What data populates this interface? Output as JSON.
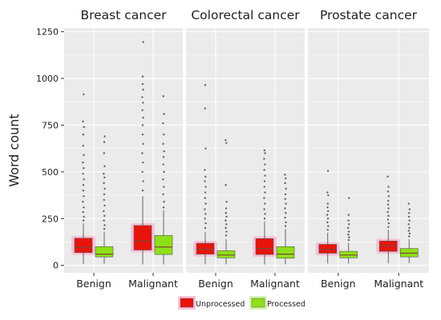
{
  "chart_data": {
    "type": "box",
    "ylabel": "Word count",
    "ylim": [
      -40,
      1270
    ],
    "yticks": [
      0,
      250,
      500,
      750,
      1000,
      1250
    ],
    "ytick_labels": [
      "0",
      "250",
      "500",
      "750",
      "1000",
      "1250"
    ],
    "grid": true,
    "legend_position": "bottom",
    "colors": {
      "Unprocessed": "#e8140c",
      "Processed": "#8ee018",
      "median": "#7a4a3a",
      "panel": "#ebebeb",
      "gridline": "#ffffff",
      "outlier": "#333333"
    },
    "series_names": [
      "Unprocessed",
      "Processed"
    ],
    "categories": [
      "Benign",
      "Malignant"
    ],
    "facets": [
      {
        "title": "Breast cancer",
        "groups": [
          {
            "category": "Benign",
            "boxes": [
              {
                "series": "Unprocessed",
                "whisker_low": 8,
                "q1": 68,
                "median": 95,
                "q3": 145,
                "whisker_high": 225,
                "outliers": [
                  240,
                  260,
                  285,
                  310,
                  340,
                  370,
                  400,
                  430,
                  460,
                  490,
                  520,
                  550,
                  590,
                  640,
                  700,
                  740,
                  770,
                  915
                ]
              },
              {
                "series": "Processed",
                "whisker_low": 8,
                "q1": 45,
                "median": 60,
                "q3": 100,
                "whisker_high": 180,
                "outliers": [
                  195,
                  215,
                  240,
                  265,
                  290,
                  320,
                  350,
                  380,
                  410,
                  440,
                  470,
                  490,
                  530,
                  600,
                  660,
                  690
                ]
              }
            ]
          },
          {
            "category": "Malignant",
            "boxes": [
              {
                "series": "Unprocessed",
                "whisker_low": 5,
                "q1": 82,
                "median": 130,
                "q3": 213,
                "whisker_high": 370,
                "outliers": [
                  400,
                  450,
                  500,
                  550,
                  600,
                  650,
                  700,
                  750,
                  790,
                  830,
                  870,
                  900,
                  940,
                  970,
                  1010,
                  1195
                ]
              },
              {
                "series": "Processed",
                "whisker_low": 5,
                "q1": 58,
                "median": 98,
                "q3": 160,
                "whisker_high": 295,
                "outliers": [
                  310,
                  340,
                  380,
                  420,
                  460,
                  500,
                  540,
                  580,
                  610,
                  650,
                  700,
                  760,
                  810,
                  905
                ]
              }
            ]
          }
        ]
      },
      {
        "title": "Colorectal cancer",
        "groups": [
          {
            "category": "Benign",
            "boxes": [
              {
                "series": "Unprocessed",
                "whisker_low": 5,
                "q1": 60,
                "median": 85,
                "q3": 118,
                "whisker_high": 180,
                "outliers": [
                  200,
                  225,
                  250,
                  275,
                  300,
                  330,
                  360,
                  390,
                  420,
                  450,
                  475,
                  510,
                  625,
                  840,
                  965
                ]
              },
              {
                "series": "Processed",
                "whisker_low": 5,
                "q1": 40,
                "median": 55,
                "q3": 78,
                "whisker_high": 140,
                "outliers": [
                  160,
                  180,
                  200,
                  220,
                  240,
                  260,
                  280,
                  305,
                  340,
                  430,
                  655,
                  670
                ]
              }
            ]
          },
          {
            "category": "Malignant",
            "boxes": [
              {
                "series": "Unprocessed",
                "whisker_low": 5,
                "q1": 58,
                "median": 90,
                "q3": 143,
                "whisker_high": 235,
                "outliers": [
                  250,
                  275,
                  300,
                  330,
                  360,
                  390,
                  420,
                  450,
                  480,
                  510,
                  540,
                  570,
                  600,
                  615
                ]
              },
              {
                "series": "Processed",
                "whisker_low": 5,
                "q1": 38,
                "median": 60,
                "q3": 100,
                "whisker_high": 195,
                "outliers": [
                  210,
                  230,
                  255,
                  280,
                  305,
                  330,
                  355,
                  380,
                  410,
                  440,
                  465,
                  485
                ]
              }
            ]
          }
        ]
      },
      {
        "title": "Prostate cancer",
        "groups": [
          {
            "category": "Benign",
            "boxes": [
              {
                "series": "Unprocessed",
                "whisker_low": 10,
                "q1": 65,
                "median": 85,
                "q3": 112,
                "whisker_high": 175,
                "outliers": [
                  190,
                  210,
                  230,
                  250,
                  270,
                  290,
                  310,
                  330,
                  375,
                  390,
                  505
                ]
              },
              {
                "series": "Processed",
                "whisker_low": 10,
                "q1": 40,
                "median": 55,
                "q3": 75,
                "whisker_high": 120,
                "outliers": [
                  135,
                  150,
                  165,
                  180,
                  200,
                  220,
                  240,
                  270,
                  360
                ]
              }
            ]
          },
          {
            "category": "Malignant",
            "boxes": [
              {
                "series": "Unprocessed",
                "whisker_low": 12,
                "q1": 75,
                "median": 105,
                "q3": 130,
                "whisker_high": 190,
                "outliers": [
                  205,
                  225,
                  245,
                  265,
                  285,
                  305,
                  325,
                  345,
                  370,
                  395,
                  420,
                  475
                ]
              },
              {
                "series": "Processed",
                "whisker_low": 12,
                "q1": 45,
                "median": 65,
                "q3": 90,
                "whisker_high": 140,
                "outliers": [
                  155,
                  170,
                  185,
                  200,
                  220,
                  240,
                  260,
                  280,
                  300,
                  330
                ]
              }
            ]
          }
        ]
      }
    ]
  }
}
